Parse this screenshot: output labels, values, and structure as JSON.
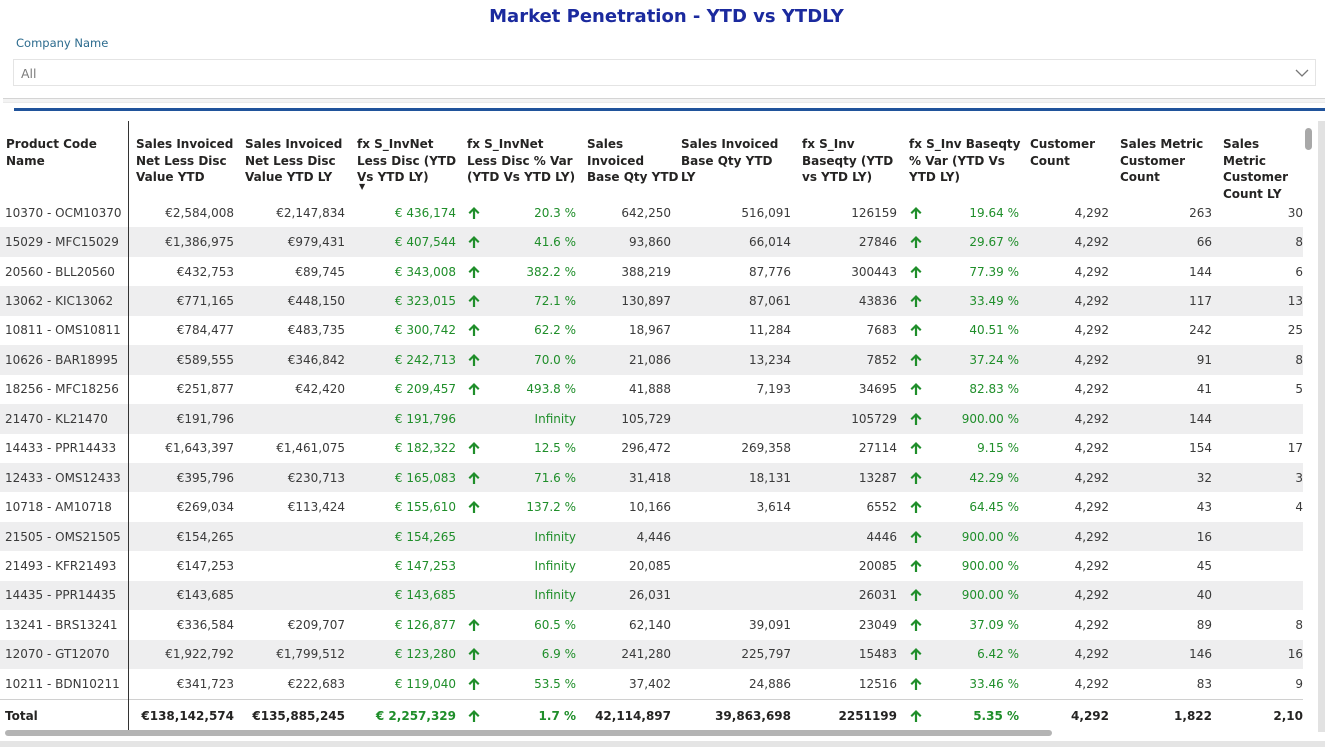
{
  "title": "Market Penetration - YTD vs YTDLY",
  "slicer": {
    "label": "Company Name",
    "value": "All"
  },
  "columns": [
    "Product Code Name",
    "Sales Invoiced Net Less Disc Value YTD",
    "Sales Invoiced Net Less Disc Value YTD LY",
    "fx S_InvNet Less Disc (YTD Vs YTD LY)",
    "fx S_InvNet Less Disc % Var (YTD Vs YTD LY)",
    "Sales Invoiced Base Qty YTD",
    "Sales Invoiced Base Qty YTD LY",
    "fx S_Inv Baseqty (YTD vs YTD LY)",
    "fx S_Inv Baseqty % Var (YTD Vs YTD LY)",
    "Customer Count",
    "Sales Metric Customer Count",
    "Sales Metric Customer Count LY"
  ],
  "rows": [
    {
      "name": "10370 - OCM10370",
      "ytd": "€2,584,008",
      "ly": "€2,147,834",
      "diff": "€ 436,174",
      "up1": true,
      "pct": "20.3 %",
      "qty": "642,250",
      "qtyly": "516,091",
      "qdiff": "126159",
      "up2": true,
      "qpct": "19.64 %",
      "cust": "4,292",
      "smc": "263",
      "smcly": "30"
    },
    {
      "name": "15029 - MFC15029",
      "ytd": "€1,386,975",
      "ly": "€979,431",
      "diff": "€ 407,544",
      "up1": true,
      "pct": "41.6 %",
      "qty": "93,860",
      "qtyly": "66,014",
      "qdiff": "27846",
      "up2": true,
      "qpct": "29.67 %",
      "cust": "4,292",
      "smc": "66",
      "smcly": "8"
    },
    {
      "name": "20560 - BLL20560",
      "ytd": "€432,753",
      "ly": "€89,745",
      "diff": "€ 343,008",
      "up1": true,
      "pct": "382.2 %",
      "qty": "388,219",
      "qtyly": "87,776",
      "qdiff": "300443",
      "up2": true,
      "qpct": "77.39 %",
      "cust": "4,292",
      "smc": "144",
      "smcly": "6"
    },
    {
      "name": "13062 - KIC13062",
      "ytd": "€771,165",
      "ly": "€448,150",
      "diff": "€ 323,015",
      "up1": true,
      "pct": "72.1 %",
      "qty": "130,897",
      "qtyly": "87,061",
      "qdiff": "43836",
      "up2": true,
      "qpct": "33.49 %",
      "cust": "4,292",
      "smc": "117",
      "smcly": "13"
    },
    {
      "name": "10811 - OMS10811",
      "ytd": "€784,477",
      "ly": "€483,735",
      "diff": "€ 300,742",
      "up1": true,
      "pct": "62.2 %",
      "qty": "18,967",
      "qtyly": "11,284",
      "qdiff": "7683",
      "up2": true,
      "qpct": "40.51 %",
      "cust": "4,292",
      "smc": "242",
      "smcly": "25"
    },
    {
      "name": "10626 - BAR18995",
      "ytd": "€589,555",
      "ly": "€346,842",
      "diff": "€ 242,713",
      "up1": true,
      "pct": "70.0 %",
      "qty": "21,086",
      "qtyly": "13,234",
      "qdiff": "7852",
      "up2": true,
      "qpct": "37.24 %",
      "cust": "4,292",
      "smc": "91",
      "smcly": "8"
    },
    {
      "name": "18256 - MFC18256",
      "ytd": "€251,877",
      "ly": "€42,420",
      "diff": "€ 209,457",
      "up1": true,
      "pct": "493.8 %",
      "qty": "41,888",
      "qtyly": "7,193",
      "qdiff": "34695",
      "up2": true,
      "qpct": "82.83 %",
      "cust": "4,292",
      "smc": "41",
      "smcly": "5"
    },
    {
      "name": "21470 - KL21470",
      "ytd": "€191,796",
      "ly": "",
      "diff": "€ 191,796",
      "up1": false,
      "pct": "Infinity",
      "qty": "105,729",
      "qtyly": "",
      "qdiff": "105729",
      "up2": true,
      "qpct": "900.00 %",
      "cust": "4,292",
      "smc": "144",
      "smcly": ""
    },
    {
      "name": "14433 - PPR14433",
      "ytd": "€1,643,397",
      "ly": "€1,461,075",
      "diff": "€ 182,322",
      "up1": true,
      "pct": "12.5 %",
      "qty": "296,472",
      "qtyly": "269,358",
      "qdiff": "27114",
      "up2": true,
      "qpct": "9.15 %",
      "cust": "4,292",
      "smc": "154",
      "smcly": "17"
    },
    {
      "name": "12433 - OMS12433",
      "ytd": "€395,796",
      "ly": "€230,713",
      "diff": "€ 165,083",
      "up1": true,
      "pct": "71.6 %",
      "qty": "31,418",
      "qtyly": "18,131",
      "qdiff": "13287",
      "up2": true,
      "qpct": "42.29 %",
      "cust": "4,292",
      "smc": "32",
      "smcly": "3"
    },
    {
      "name": "10718 - AM10718",
      "ytd": "€269,034",
      "ly": "€113,424",
      "diff": "€ 155,610",
      "up1": true,
      "pct": "137.2 %",
      "qty": "10,166",
      "qtyly": "3,614",
      "qdiff": "6552",
      "up2": true,
      "qpct": "64.45 %",
      "cust": "4,292",
      "smc": "43",
      "smcly": "4"
    },
    {
      "name": "21505 - OMS21505",
      "ytd": "€154,265",
      "ly": "",
      "diff": "€ 154,265",
      "up1": false,
      "pct": "Infinity",
      "qty": "4,446",
      "qtyly": "",
      "qdiff": "4446",
      "up2": true,
      "qpct": "900.00 %",
      "cust": "4,292",
      "smc": "16",
      "smcly": ""
    },
    {
      "name": "21493 - KFR21493",
      "ytd": "€147,253",
      "ly": "",
      "diff": "€ 147,253",
      "up1": false,
      "pct": "Infinity",
      "qty": "20,085",
      "qtyly": "",
      "qdiff": "20085",
      "up2": true,
      "qpct": "900.00 %",
      "cust": "4,292",
      "smc": "45",
      "smcly": ""
    },
    {
      "name": "14435 - PPR14435",
      "ytd": "€143,685",
      "ly": "",
      "diff": "€ 143,685",
      "up1": false,
      "pct": "Infinity",
      "qty": "26,031",
      "qtyly": "",
      "qdiff": "26031",
      "up2": true,
      "qpct": "900.00 %",
      "cust": "4,292",
      "smc": "40",
      "smcly": ""
    },
    {
      "name": "13241 - BRS13241",
      "ytd": "€336,584",
      "ly": "€209,707",
      "diff": "€ 126,877",
      "up1": true,
      "pct": "60.5 %",
      "qty": "62,140",
      "qtyly": "39,091",
      "qdiff": "23049",
      "up2": true,
      "qpct": "37.09 %",
      "cust": "4,292",
      "smc": "89",
      "smcly": "8"
    },
    {
      "name": "12070 - GT12070",
      "ytd": "€1,922,792",
      "ly": "€1,799,512",
      "diff": "€ 123,280",
      "up1": true,
      "pct": "6.9 %",
      "qty": "241,280",
      "qtyly": "225,797",
      "qdiff": "15483",
      "up2": true,
      "qpct": "6.42 %",
      "cust": "4,292",
      "smc": "146",
      "smcly": "16"
    },
    {
      "name": "10211 - BDN10211",
      "ytd": "€341,723",
      "ly": "€222,683",
      "diff": "€ 119,040",
      "up1": true,
      "pct": "53.5 %",
      "qty": "37,402",
      "qtyly": "24,886",
      "qdiff": "12516",
      "up2": true,
      "qpct": "33.46 %",
      "cust": "4,292",
      "smc": "83",
      "smcly": "9"
    }
  ],
  "total": {
    "name": "Total",
    "ytd": "€138,142,574",
    "ly": "€135,885,245",
    "diff": "€ 2,257,329",
    "up1": true,
    "pct": "1.7 %",
    "qty": "42,114,897",
    "qtyly": "39,863,698",
    "qdiff": "2251199",
    "up2": true,
    "qpct": "5.35 %",
    "cust": "4,292",
    "smc": "1,822",
    "smcly": "2,10"
  },
  "colors": {
    "title": "#1b2a9e",
    "positive": "#1f8e2a",
    "accent_line": "#20539b"
  },
  "icons": {
    "up": "arrow-up-icon",
    "dropdown": "chevron-down-icon",
    "sort": "sort-descending-icon"
  }
}
